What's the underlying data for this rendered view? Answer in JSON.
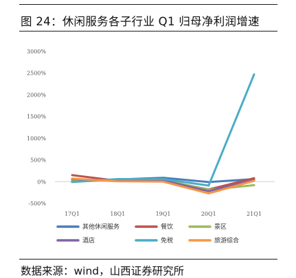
{
  "figure": {
    "title": "图 24：休闲服务各子行业 Q1 归母净利润增速",
    "source": "数据来源：wind，山西证券研究所"
  },
  "chart_data": {
    "type": "line",
    "categories": [
      "17Q1",
      "18Q1",
      "19Q1",
      "20Q1",
      "21Q1"
    ],
    "y_ticks": [
      -500,
      0,
      500,
      1000,
      1500,
      2000,
      2500,
      3000
    ],
    "y_tick_labels": [
      "-500%",
      "0%",
      "500%",
      "1000%",
      "1500%",
      "2000%",
      "2500%",
      "3000%"
    ],
    "ylim": [
      -500,
      3000
    ],
    "grid": false,
    "legend_position": "bottom",
    "series": [
      {
        "name": "其他休闲服务",
        "color": "#4a7ebb",
        "values": [
          10,
          50,
          90,
          -10,
          60
        ]
      },
      {
        "name": "餐饮",
        "color": "#c0504d",
        "values": [
          150,
          20,
          30,
          -180,
          80
        ]
      },
      {
        "name": "景区",
        "color": "#9bbb59",
        "values": [
          40,
          30,
          40,
          -190,
          -80
        ]
      },
      {
        "name": "酒店",
        "color": "#8064a2",
        "values": [
          60,
          20,
          30,
          -220,
          40
        ]
      },
      {
        "name": "免税",
        "color": "#4bacc6",
        "values": [
          -10,
          60,
          60,
          -90,
          2470
        ]
      },
      {
        "name": "旅游综合",
        "color": "#f79646",
        "values": [
          70,
          10,
          0,
          -270,
          20
        ]
      }
    ]
  }
}
